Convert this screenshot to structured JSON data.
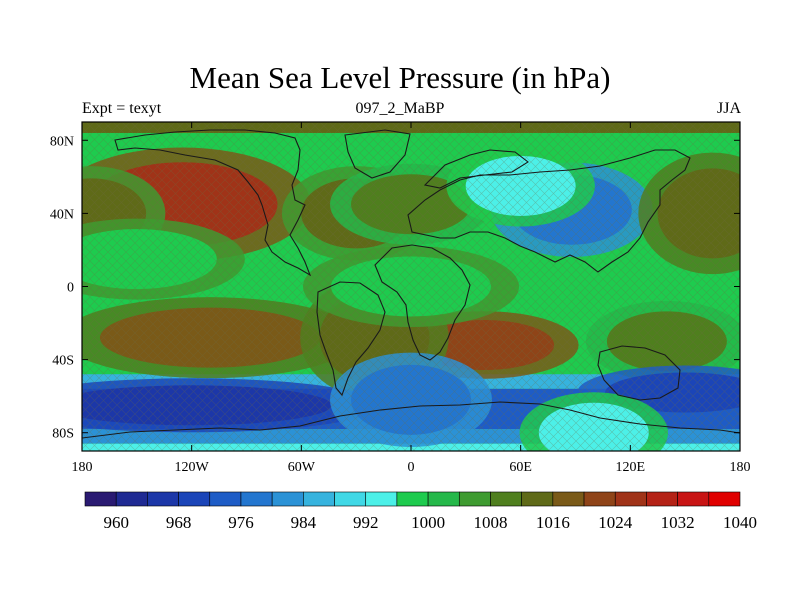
{
  "title": "Mean Sea Level Pressure (in hPa)",
  "subtitle_left": "Expt = texyt",
  "subtitle_center": "097_2_MaBP",
  "subtitle_right": "JJA",
  "map": {
    "lon_range": [
      -180,
      180
    ],
    "lat_range": [
      -90,
      90
    ],
    "lon_ticks": [
      {
        "value": -180,
        "label": "180"
      },
      {
        "value": -120,
        "label": "120W"
      },
      {
        "value": -60,
        "label": "60W"
      },
      {
        "value": 0,
        "label": "0"
      },
      {
        "value": 60,
        "label": "60E"
      },
      {
        "value": 120,
        "label": "120E"
      },
      {
        "value": 180,
        "label": "180"
      }
    ],
    "lat_ticks": [
      {
        "value": 80,
        "label": "80N"
      },
      {
        "value": 40,
        "label": "40N"
      },
      {
        "value": 0,
        "label": "0"
      },
      {
        "value": -40,
        "label": "40S"
      },
      {
        "value": -80,
        "label": "80S"
      }
    ],
    "fields": [
      {
        "lon": -125,
        "lat": 45,
        "value": 1024
      },
      {
        "lon": -175,
        "lat": 40,
        "value": 1012
      },
      {
        "lon": -150,
        "lat": 15,
        "value": 998
      },
      {
        "lon": -30,
        "lat": 40,
        "value": 1012
      },
      {
        "lon": 0,
        "lat": 45,
        "value": 1008
      },
      {
        "lon": 88,
        "lat": 42,
        "value": 976
      },
      {
        "lon": 60,
        "lat": 55,
        "value": 992
      },
      {
        "lon": 165,
        "lat": 40,
        "value": 1014
      },
      {
        "lon": 40,
        "lat": -32,
        "value": 1022
      },
      {
        "lon": -110,
        "lat": -28,
        "value": 1016
      },
      {
        "lon": -20,
        "lat": -28,
        "value": 1014
      },
      {
        "lon": 140,
        "lat": -30,
        "value": 1008
      },
      {
        "lon": -120,
        "lat": -65,
        "value": 964
      },
      {
        "lon": 0,
        "lat": -62,
        "value": 976
      },
      {
        "lon": 150,
        "lat": -58,
        "value": 968
      },
      {
        "lon": 100,
        "lat": -80,
        "value": 992
      },
      {
        "lon": 0,
        "lat": 0,
        "value": 998
      }
    ]
  },
  "colorbar": {
    "colors": [
      "#2a1a72",
      "#1f2a93",
      "#1c37a8",
      "#1b45b8",
      "#1e5cc6",
      "#2376cf",
      "#2b92d6",
      "#36b3de",
      "#40d8e6",
      "#4cf0e8",
      "#1ecb4e",
      "#25b84a",
      "#3e9b30",
      "#4f7f1e",
      "#5f6a18",
      "#7a5a18",
      "#8f4418",
      "#a03318",
      "#b42216",
      "#c81414",
      "#e00000"
    ],
    "labels": [
      "960",
      "968",
      "976",
      "984",
      "992",
      "1000",
      "1008",
      "1016",
      "1024",
      "1032",
      "1040"
    ],
    "values": [
      956,
      960,
      964,
      968,
      972,
      976,
      980,
      984,
      988,
      992,
      996,
      1000,
      1004,
      1008,
      1012,
      1016,
      1020,
      1024,
      1028,
      1032,
      1036,
      1040
    ]
  }
}
